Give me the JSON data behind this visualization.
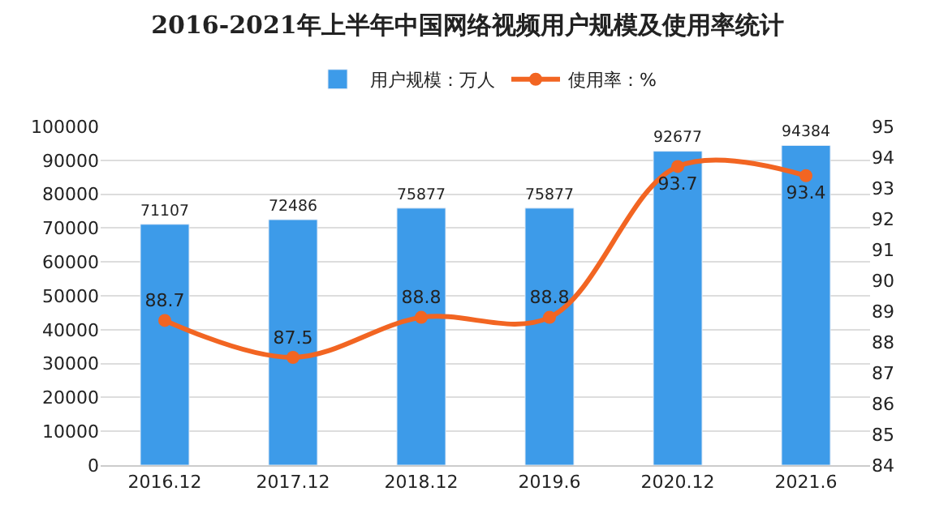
{
  "chart_data": {
    "type": "bar",
    "title": "2016-2021年上半年中国网络视频用户规模及使用率统计",
    "categories": [
      "2016.12",
      "2017.12",
      "2018.12",
      "2019.6",
      "2020.12",
      "2021.6"
    ],
    "series": [
      {
        "name": "用户规模：万人",
        "color": "#3d9be9",
        "values": [
          71107,
          72486,
          75877,
          75877,
          92677,
          94384
        ]
      },
      {
        "name": "使用率：%",
        "type": "line",
        "axis": "y2",
        "color": "#f26522",
        "marker": "circle",
        "values": [
          88.7,
          87.5,
          88.8,
          88.8,
          93.7,
          93.4
        ]
      }
    ],
    "ylim": [
      0,
      100000
    ],
    "yticks": [
      0,
      10000,
      20000,
      30000,
      40000,
      50000,
      60000,
      70000,
      80000,
      90000,
      100000
    ],
    "y2lim": [
      84,
      95
    ],
    "y2ticks": [
      84,
      85,
      86,
      87,
      88,
      89,
      90,
      91,
      92,
      93,
      94,
      95
    ],
    "grid": "y",
    "legend": "top",
    "data_labels": true
  }
}
